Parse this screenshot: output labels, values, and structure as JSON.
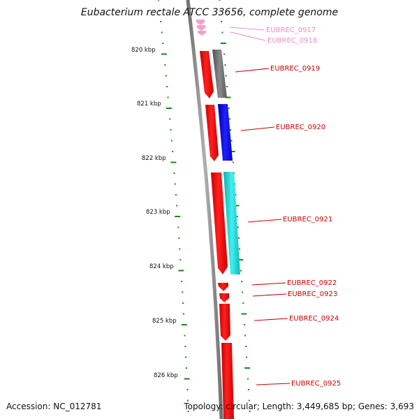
{
  "title": "Eubacterium rectale ATCC 33656, complete genome",
  "accession_label": "Accession: NC_012781",
  "topology_label": "Topology: circular; Length: 3,449,685 bp; Genes: 3,693",
  "ruler": [
    "820 kbp",
    "821 kbp",
    "822 kbp",
    "823 kbp",
    "824 kbp",
    "825 kbp",
    "826 kbp"
  ],
  "genes": [
    {
      "label": "EUBREC_0917",
      "color": "#f08cc0"
    },
    {
      "label": "EUBREC_0918",
      "color": "#f08cc0"
    },
    {
      "label": "EUBREC_0919",
      "color": "#cc0000"
    },
    {
      "label": "EUBREC_0920",
      "color": "#cc0000"
    },
    {
      "label": "EUBREC_0921",
      "color": "#cc0000"
    },
    {
      "label": "EUBREC_0922",
      "color": "#cc0000"
    },
    {
      "label": "EUBREC_0923",
      "color": "#cc0000"
    },
    {
      "label": "EUBREC_0924",
      "color": "#cc0000"
    },
    {
      "label": "EUBREC_0925",
      "color": "#cc0000"
    }
  ],
  "colors": {
    "backbone": "#808080",
    "cds": "#ff0000",
    "cds_pink": "#f5a0c8",
    "tick": "#138a13",
    "cog_gray": "#6e6e6e",
    "cog_blue": "#0000e0",
    "cog_cyan": "#18d0d0"
  }
}
